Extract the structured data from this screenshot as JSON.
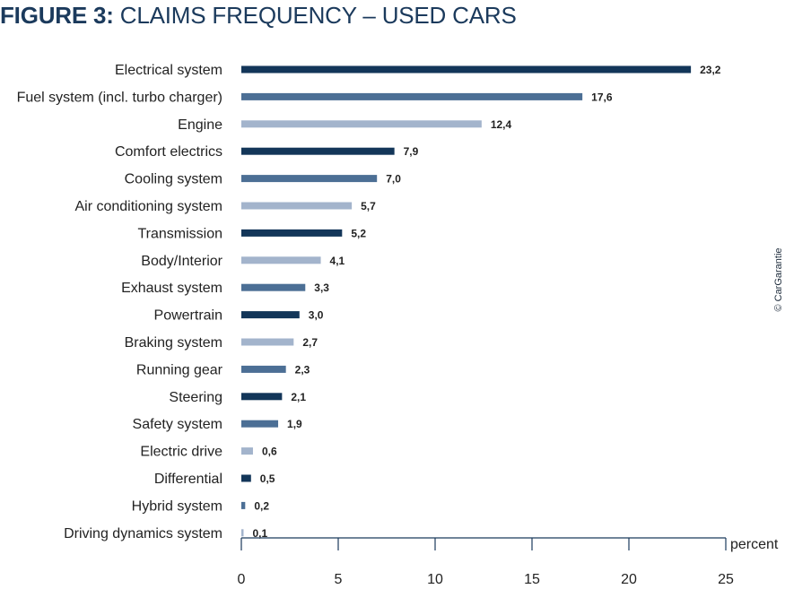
{
  "title": {
    "prefix": "FIGURE 3:",
    "text": "CLAIMS FREQUENCY – USED CARS"
  },
  "credit": "© CarGarantie",
  "colors": {
    "title_prefix": "#1b3a5c",
    "title_text": "#1b3a5c",
    "dark": "#133659",
    "mid": "#4c6f95",
    "light": "#a3b4cc",
    "axis": "#1b3a5c"
  },
  "chart_data": {
    "type": "bar",
    "orientation": "horizontal",
    "title": "FIGURE 3: CLAIMS FREQUENCY – USED CARS",
    "xlabel": "percent",
    "ylabel": "",
    "xlim": [
      0,
      25
    ],
    "xticks": [
      0,
      5,
      10,
      15,
      20,
      25
    ],
    "categories": [
      "Electrical system",
      "Fuel system (incl. turbo charger)",
      "Engine",
      "Comfort electrics",
      "Cooling system",
      "Air conditioning system",
      "Transmission",
      "Body/Interior",
      "Exhaust system",
      "Powertrain",
      "Braking system",
      "Running gear",
      "Steering",
      "Safety system",
      "Electric drive",
      "Differential",
      "Hybrid system",
      "Driving dynamics system"
    ],
    "values": [
      23.2,
      17.6,
      12.4,
      7.9,
      7.0,
      5.7,
      5.2,
      4.1,
      3.3,
      3.0,
      2.7,
      2.3,
      2.1,
      1.9,
      0.6,
      0.5,
      0.2,
      0.1
    ],
    "value_labels": [
      "23,2",
      "17,6",
      "12,4",
      "7,9",
      "7,0",
      "5,7",
      "5,2",
      "4,1",
      "3,3",
      "3,0",
      "2,7",
      "2,3",
      "2,1",
      "1,9",
      "0,6",
      "0,5",
      "0,2",
      "0,1"
    ],
    "tick_labels": [
      "0",
      "5",
      "10",
      "15",
      "20",
      "25"
    ],
    "bar_shades": [
      "dark",
      "mid",
      "light",
      "dark",
      "mid",
      "light",
      "dark",
      "light",
      "mid",
      "dark",
      "light",
      "mid",
      "dark",
      "mid",
      "light",
      "dark",
      "mid",
      "light"
    ],
    "grid": false
  }
}
